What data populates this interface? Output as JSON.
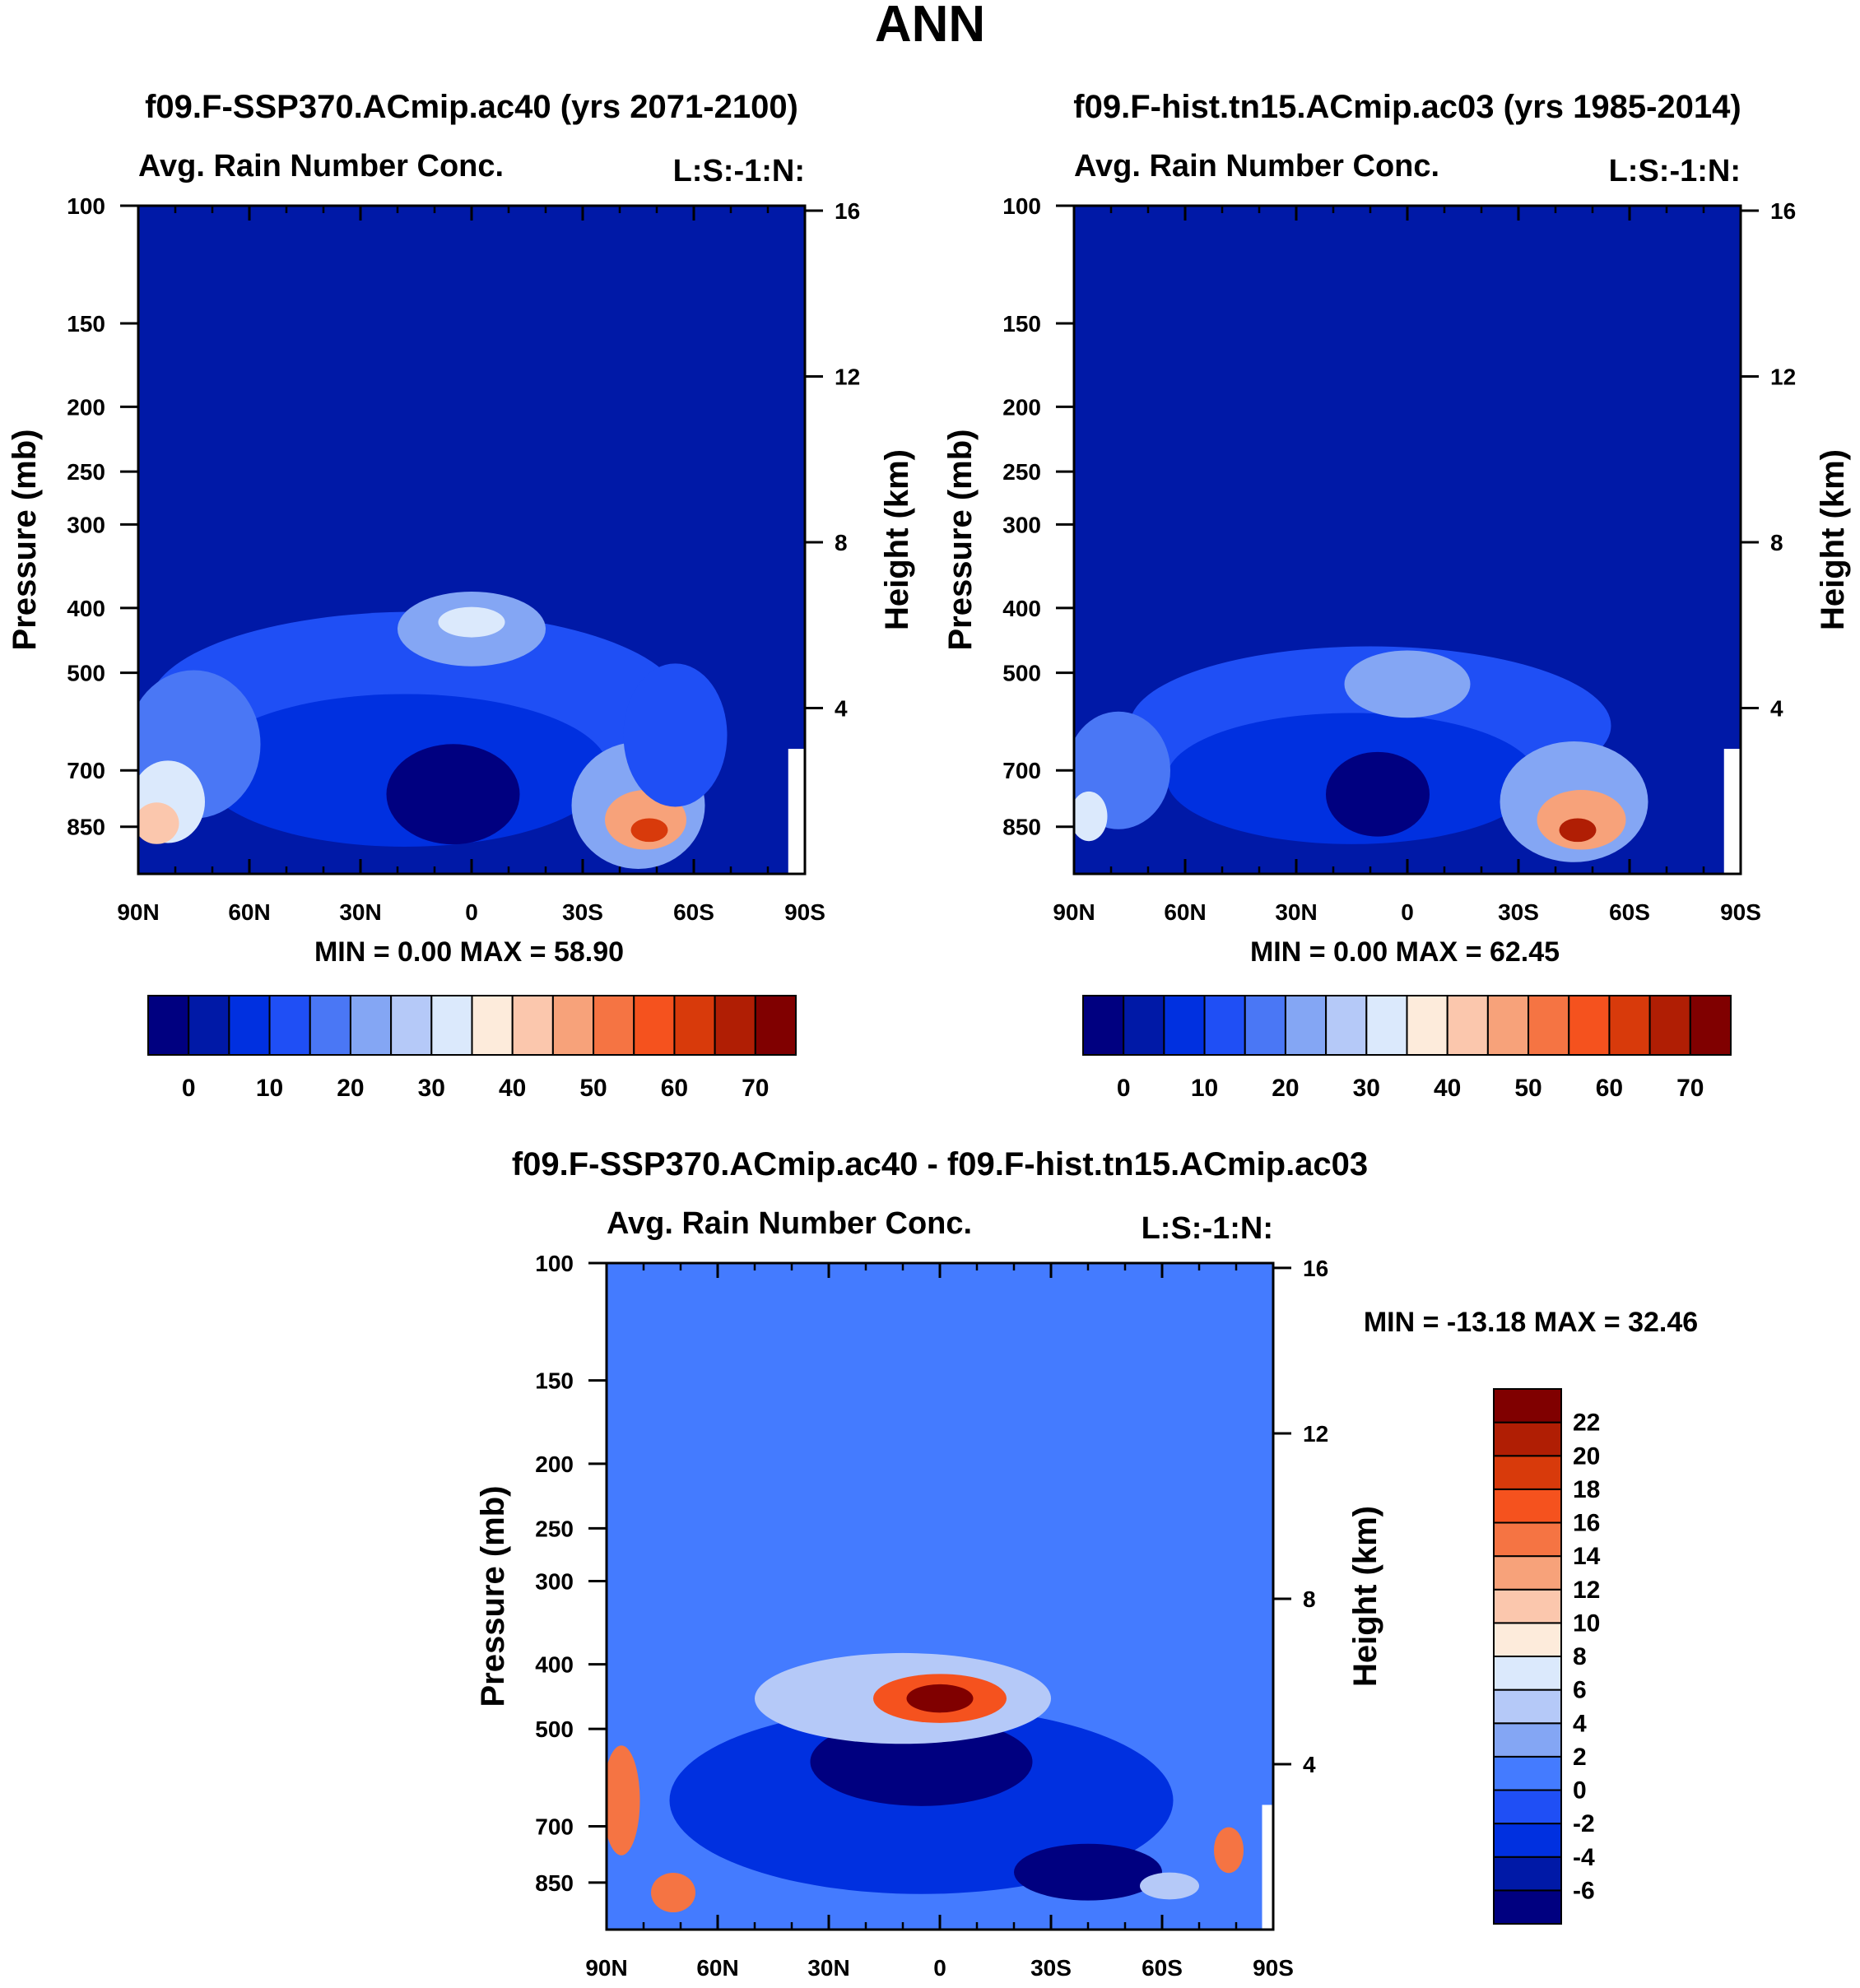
{
  "page_title": "ANN",
  "colors": {
    "seq": [
      "#000080",
      "#0019a7",
      "#0030e0",
      "#1f4ff5",
      "#4a77f5",
      "#84a6f4",
      "#b5c9f8",
      "#dbe9fc",
      "#fdebdb",
      "#fbc7ad",
      "#f7a27a",
      "#f57443",
      "#f5521e",
      "#d83a0b",
      "#b01e04",
      "#800000"
    ],
    "diff": [
      "#000080",
      "#0019a7",
      "#0030e0",
      "#1f4ff5",
      "#447bff",
      "#84a6f4",
      "#b5c9f8",
      "#dbe9fc",
      "#fdebdb",
      "#fbc7ad",
      "#f7a27a",
      "#f57443",
      "#f5521e",
      "#d83a0b",
      "#b01e04",
      "#800000"
    ]
  },
  "chart_data": [
    {
      "type": "heatmap",
      "id": "p1",
      "title": "f09.F-SSP370.ACmip.ac40 (yrs 2071-2100)",
      "subtitle_left": "Avg. Rain Number Conc.",
      "subtitle_right": "L:S:-1:N:",
      "ylabel": "Pressure (mb)",
      "y2label": "Height (km)",
      "x_ticks": [
        "90N",
        "60N",
        "30N",
        "0",
        "30S",
        "60S",
        "90S"
      ],
      "x_range": [
        90,
        -90
      ],
      "y_ticks": [
        100,
        150,
        200,
        250,
        300,
        400,
        500,
        700,
        850
      ],
      "y_range": [
        100,
        1000
      ],
      "y2_ticks": [
        16,
        12,
        8,
        4
      ],
      "min_max_label": "MIN =    0.00   MAX =  58.90",
      "colorbar_labels": [
        "0",
        "10",
        "20",
        "30",
        "40",
        "50",
        "60",
        "70"
      ],
      "background_level": 1,
      "blobs": [
        {
          "lat": 15,
          "p": 560,
          "lev": 3,
          "rx": 72,
          "rp": 175
        },
        {
          "lat": 18,
          "p": 700,
          "lev": 2,
          "rx": 55,
          "rp": 180
        },
        {
          "lat": 0,
          "p": 430,
          "lev": 5,
          "rx": 20,
          "rp": 55
        },
        {
          "lat": 0,
          "p": 420,
          "lev": 7,
          "rx": 9,
          "rp": 22
        },
        {
          "lat": 75,
          "p": 640,
          "lev": 4,
          "rx": 18,
          "rp": 160
        },
        {
          "lat": 82,
          "p": 780,
          "lev": 7,
          "rx": 10,
          "rp": 110
        },
        {
          "lat": 85,
          "p": 840,
          "lev": 9,
          "rx": 6,
          "rp": 60
        },
        {
          "lat": -45,
          "p": 790,
          "lev": 5,
          "rx": 18,
          "rp": 170
        },
        {
          "lat": -47,
          "p": 830,
          "lev": 10,
          "rx": 11,
          "rp": 85
        },
        {
          "lat": -48,
          "p": 860,
          "lev": 13,
          "rx": 5,
          "rp": 35
        },
        {
          "lat": -55,
          "p": 620,
          "lev": 3,
          "rx": 14,
          "rp": 150
        },
        {
          "lat": 5,
          "p": 760,
          "lev": 0,
          "rx": 18,
          "rp": 130
        }
      ]
    },
    {
      "type": "heatmap",
      "id": "p2",
      "title": "f09.F-hist.tn15.ACmip.ac03 (yrs 1985-2014)",
      "subtitle_left": "Avg. Rain Number Conc.",
      "subtitle_right": "L:S:-1:N:",
      "ylabel": "Pressure (mb)",
      "y2label": "Height (km)",
      "x_ticks": [
        "90N",
        "60N",
        "30N",
        "0",
        "30S",
        "60S",
        "90S"
      ],
      "x_range": [
        90,
        -90
      ],
      "y_ticks": [
        100,
        150,
        200,
        250,
        300,
        400,
        500,
        700,
        850
      ],
      "y_range": [
        100,
        1000
      ],
      "y2_ticks": [
        16,
        12,
        8,
        4
      ],
      "min_max_label": "MIN =    0.00   MAX =  62.45",
      "colorbar_labels": [
        "0",
        "10",
        "20",
        "30",
        "40",
        "50",
        "60",
        "70"
      ],
      "background_level": 1,
      "blobs": [
        {
          "lat": 10,
          "p": 600,
          "lev": 3,
          "rx": 65,
          "rp": 160
        },
        {
          "lat": 15,
          "p": 720,
          "lev": 2,
          "rx": 50,
          "rp": 160
        },
        {
          "lat": 0,
          "p": 520,
          "lev": 5,
          "rx": 17,
          "rp": 60
        },
        {
          "lat": 78,
          "p": 700,
          "lev": 4,
          "rx": 14,
          "rp": 140
        },
        {
          "lat": 86,
          "p": 820,
          "lev": 7,
          "rx": 5,
          "rp": 70
        },
        {
          "lat": -45,
          "p": 780,
          "lev": 5,
          "rx": 20,
          "rp": 160
        },
        {
          "lat": -47,
          "p": 830,
          "lev": 10,
          "rx": 12,
          "rp": 85
        },
        {
          "lat": -46,
          "p": 860,
          "lev": 14,
          "rx": 5,
          "rp": 35
        },
        {
          "lat": 8,
          "p": 760,
          "lev": 0,
          "rx": 14,
          "rp": 110
        }
      ]
    },
    {
      "type": "heatmap",
      "id": "p3",
      "title": "f09.F-SSP370.ACmip.ac40 - f09.F-hist.tn15.ACmip.ac03",
      "subtitle_left": "Avg. Rain Number Conc.",
      "subtitle_right": "L:S:-1:N:",
      "ylabel": "Pressure (mb)",
      "y2label": "Height (km)",
      "x_ticks": [
        "90N",
        "60N",
        "30N",
        "0",
        "30S",
        "60S",
        "90S"
      ],
      "x_range": [
        90,
        -90
      ],
      "y_ticks": [
        100,
        150,
        200,
        250,
        300,
        400,
        500,
        700,
        850
      ],
      "y_range": [
        100,
        1000
      ],
      "y2_ticks": [
        16,
        12,
        8,
        4
      ],
      "min_max_label": "MIN = -13.18   MAX =  32.46",
      "colorbar_labels": [
        "22",
        "20",
        "18",
        "16",
        "14",
        "12",
        "10",
        "8",
        "6",
        "4",
        "2",
        "0",
        "-2",
        "-4",
        "-6"
      ],
      "background_level": 4,
      "blobs": [
        {
          "lat": 5,
          "p": 640,
          "lev": 2,
          "rx": 68,
          "rp": 200
        },
        {
          "lat": 5,
          "p": 560,
          "lev": 0,
          "rx": 30,
          "rp": 85
        },
        {
          "lat": 10,
          "p": 450,
          "lev": 6,
          "rx": 40,
          "rp": 70
        },
        {
          "lat": 0,
          "p": 450,
          "lev": 12,
          "rx": 18,
          "rp": 38
        },
        {
          "lat": 0,
          "p": 450,
          "lev": 15,
          "rx": 9,
          "rp": 22
        },
        {
          "lat": -40,
          "p": 820,
          "lev": 0,
          "rx": 20,
          "rp": 80
        },
        {
          "lat": -62,
          "p": 860,
          "lev": 6,
          "rx": 8,
          "rp": 40
        },
        {
          "lat": 86,
          "p": 640,
          "lev": 11,
          "rx": 5,
          "rp": 120
        },
        {
          "lat": 72,
          "p": 880,
          "lev": 11,
          "rx": 6,
          "rp": 60
        },
        {
          "lat": -78,
          "p": 760,
          "lev": 11,
          "rx": 4,
          "rp": 60
        }
      ]
    }
  ]
}
